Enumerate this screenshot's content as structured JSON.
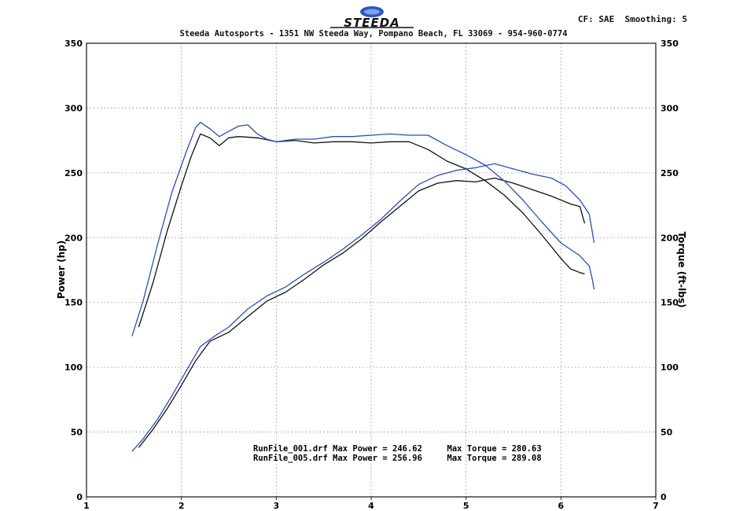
{
  "header": {
    "logo_text": "STEEDA",
    "settings": "CF: SAE  Smoothing: 5",
    "address": "Steeda Autosports - 1351 NW Steeda Way, Pompano Beach, FL 33069 - 954-960-0774"
  },
  "colors": {
    "run_001": "#111111",
    "run_005": "#2650b8",
    "logo_blue": "#2a58c6",
    "grid": "#888888"
  },
  "chart_data": {
    "type": "line",
    "title": "",
    "xlabel": "",
    "ylabel": "Power (hp)",
    "y2label": "Torque (ft-lbs)",
    "xlim": [
      1,
      7
    ],
    "ylim": [
      0,
      350
    ],
    "y2lim": [
      0,
      350
    ],
    "x_ticks": [
      "1",
      "2",
      "3",
      "4",
      "5",
      "6",
      "7"
    ],
    "y_ticks": [
      "0",
      "50",
      "100",
      "150",
      "200",
      "250",
      "300",
      "350"
    ],
    "y2_ticks": [
      "0",
      "50",
      "100",
      "150",
      "200",
      "250",
      "300",
      "350"
    ],
    "grid": true,
    "annotations": [
      "RunFile_001.drf Max Power = 246.62     Max Torque = 280.63",
      "RunFile_005.drf Max Power = 256.96     Max Torque = 289.08"
    ],
    "series": [
      {
        "name": "RunFile_001.drf",
        "role": "power",
        "color": "#111111",
        "x": [
          1.55,
          1.7,
          1.85,
          2.0,
          2.15,
          2.3,
          2.5,
          2.7,
          2.9,
          3.1,
          3.3,
          3.5,
          3.7,
          3.9,
          4.1,
          4.3,
          4.5,
          4.7,
          4.9,
          5.1,
          5.3,
          5.5,
          5.7,
          5.9,
          6.1,
          6.2,
          6.25
        ],
        "y": [
          38,
          52,
          68,
          86,
          105,
          120,
          127,
          139,
          151,
          158,
          168,
          179,
          188,
          199,
          212,
          224,
          236,
          242,
          244,
          243,
          246,
          242,
          237,
          232,
          226,
          224,
          211
        ]
      },
      {
        "name": "RunFile_001.drf",
        "role": "torque",
        "color": "#111111",
        "x": [
          1.55,
          1.7,
          1.85,
          2.0,
          2.1,
          2.2,
          2.3,
          2.4,
          2.5,
          2.6,
          2.8,
          3.0,
          3.2,
          3.4,
          3.6,
          3.8,
          4.0,
          4.2,
          4.4,
          4.6,
          4.8,
          5.0,
          5.2,
          5.4,
          5.6,
          5.8,
          6.0,
          6.1,
          6.2,
          6.25
        ],
        "y": [
          131,
          165,
          205,
          240,
          262,
          280,
          277,
          271,
          277,
          278,
          277,
          274,
          275,
          273,
          274,
          274,
          273,
          274,
          274,
          268,
          259,
          253,
          244,
          233,
          219,
          202,
          184,
          176,
          173,
          172
        ]
      },
      {
        "name": "RunFile_005.drf",
        "role": "power",
        "color": "#2650b8",
        "x": [
          1.48,
          1.6,
          1.75,
          1.9,
          2.05,
          2.2,
          2.35,
          2.5,
          2.7,
          2.9,
          3.1,
          3.3,
          3.5,
          3.7,
          3.9,
          4.1,
          4.3,
          4.5,
          4.7,
          4.9,
          5.1,
          5.3,
          5.5,
          5.7,
          5.9,
          6.05,
          6.2,
          6.3,
          6.35
        ],
        "y": [
          35,
          45,
          60,
          78,
          97,
          116,
          124,
          131,
          145,
          155,
          162,
          172,
          181,
          191,
          202,
          214,
          228,
          241,
          248,
          252,
          254,
          257,
          253,
          249,
          246,
          240,
          229,
          218,
          196
        ]
      },
      {
        "name": "RunFile_005.drf",
        "role": "torque",
        "color": "#2650b8",
        "x": [
          1.48,
          1.6,
          1.75,
          1.9,
          2.05,
          2.15,
          2.2,
          2.3,
          2.4,
          2.5,
          2.6,
          2.7,
          2.8,
          2.9,
          3.0,
          3.2,
          3.4,
          3.6,
          3.8,
          4.0,
          4.2,
          4.4,
          4.6,
          4.8,
          5.0,
          5.2,
          5.4,
          5.6,
          5.8,
          6.0,
          6.2,
          6.3,
          6.33,
          6.35
        ],
        "y": [
          124,
          152,
          195,
          235,
          266,
          285,
          289,
          284,
          278,
          282,
          286,
          287,
          280,
          276,
          274,
          276,
          276,
          278,
          278,
          279,
          280,
          279,
          279,
          271,
          264,
          256,
          244,
          229,
          212,
          196,
          186,
          178,
          168,
          160
        ]
      }
    ]
  }
}
